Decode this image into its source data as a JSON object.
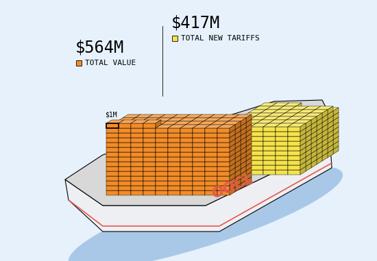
{
  "chart_data": {
    "type": "pictogram",
    "categories": [
      "TOTAL VALUE",
      "TOTAL NEW TARIFFS"
    ],
    "values": [
      564,
      417
    ],
    "value_labels": [
      "$564M",
      "$417M"
    ],
    "colors": [
      "#f28c28",
      "#f5e34a"
    ],
    "unit": {
      "value": 1,
      "label": "$1M"
    },
    "ship_label": "OOCL"
  }
}
